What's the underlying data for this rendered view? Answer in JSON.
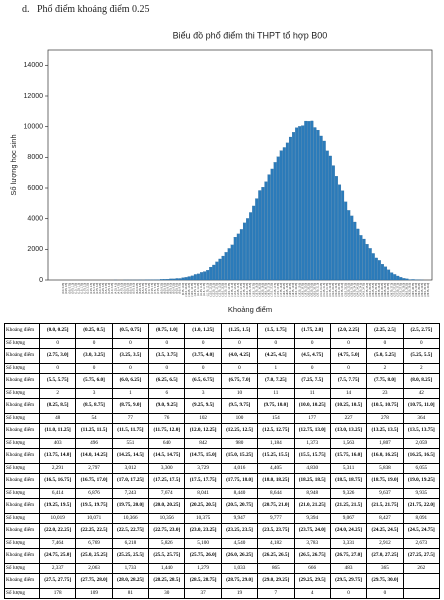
{
  "heading": "d.   Phổ điểm khoảng điểm 0.25",
  "chart_data": {
    "type": "bar",
    "title": "Biểu đồ phổ điểm thi THPT tổ hợp B00",
    "x_label": "Khoảng điểm",
    "y_label": "Số lượng học sinh",
    "color": "#2b7bba",
    "categories": [
      "(0.0, 0.25]",
      "(0.25, 0.5]",
      "(0.5, 0.75]",
      "(0.75, 1.0]",
      "(1.0, 1.25]",
      "(1.25, 1.5]",
      "(1.5, 1.75]",
      "(1.75, 2.0]",
      "(2.0, 2.25]",
      "(2.25, 2.5]",
      "(2.5, 2.75]",
      "(2.75, 3.0]",
      "(3.0, 3.25]",
      "(3.25, 3.5]",
      "(3.5, 3.75]",
      "(3.75, 4.0]",
      "(4.0, 4.25]",
      "(4.25, 4.5]",
      "(4.5, 4.75]",
      "(4.75, 5.0]",
      "(5.0, 5.25]",
      "(5.25, 5.5]",
      "(5.5, 5.75]",
      "(5.75, 6.0]",
      "(6.0, 6.25]",
      "(6.25, 6.5]",
      "(6.5, 6.75]",
      "(6.75, 7.0]",
      "(7.0, 7.25]",
      "(7.25, 7.5]",
      "(7.5, 7.75]",
      "(7.75, 8.0]",
      "(8.0, 8.25]",
      "(8.25, 8.5]",
      "(8.5, 8.75]",
      "(8.75, 9.0]",
      "(9.0, 9.25]",
      "(9.25, 9.5]",
      "(9.5, 9.75]",
      "(9.75, 10.0]",
      "(10.0, 10.25]",
      "(10.25, 10.5]",
      "(10.5, 10.75]",
      "(10.75, 11.0]",
      "(11.0, 11.25]",
      "(11.25, 11.5]",
      "(11.5, 11.75]",
      "(11.75, 12.0]",
      "(12.0, 12.25]",
      "(12.25, 12.5]",
      "(12.5, 12.75]",
      "(12.75, 13.0]",
      "(13.0, 13.25]",
      "(13.25, 13.5]",
      "(13.5, 13.75]",
      "(13.75, 14.0]",
      "(14.0, 14.25]",
      "(14.25, 14.5]",
      "(14.5, 14.75]",
      "(14.75, 15.0]",
      "(15.0, 15.25]",
      "(15.25, 15.5]",
      "(15.5, 15.75]",
      "(15.75, 16.0]",
      "(16.0, 16.25]",
      "(16.25, 16.5]",
      "(16.5, 16.75]",
      "(16.75, 17.0]",
      "(17.0, 17.25]",
      "(17.25, 17.5]",
      "(17.5, 17.75]",
      "(17.75, 18.0]",
      "(18.0, 18.25]",
      "(18.25, 18.5]",
      "(18.5, 18.75]",
      "(18.75, 19.0]",
      "(19.0, 19.25]",
      "(19.25, 19.5]",
      "(19.5, 19.75]",
      "(19.75, 20.0]",
      "(20.0, 20.25]",
      "(20.25, 20.5]",
      "(20.5, 20.75]",
      "(20.75, 21.0]",
      "(21.0, 21.25]",
      "(21.25, 21.5]",
      "(21.5, 21.75]",
      "(21.75, 22.0]",
      "(22.0, 22.25]",
      "(22.25, 22.5]",
      "(22.5, 22.75]",
      "(22.75, 23.0]",
      "(23.0, 23.25]",
      "(23.25, 23.5]",
      "(23.5, 23.75]",
      "(23.75, 24.0]",
      "(24.0, 24.25]",
      "(24.25, 24.5]",
      "(24.5, 24.75]",
      "(24.75, 25.0]",
      "(25.0, 25.25]",
      "(25.25, 25.5]",
      "(25.5, 25.75]",
      "(25.75, 26.0]",
      "(26.0, 26.25]",
      "(26.25, 26.5]",
      "(26.5, 26.75]",
      "(26.75, 27.0]",
      "(27.0, 27.25]",
      "(27.25, 27.5]",
      "(27.5, 27.75]",
      "(27.75, 28.0]",
      "(28.0, 28.25]",
      "(28.25, 28.5]",
      "(28.5, 28.75]",
      "(28.75, 29.0]",
      "(29.0, 29.25]",
      "(29.25, 29.5]",
      "(29.5, 29.75]",
      "(29.75, 30.0]"
    ],
    "values": [
      0,
      0,
      0,
      0,
      0,
      0,
      0,
      0,
      0,
      0,
      0,
      0,
      0,
      0,
      0,
      0,
      0,
      1,
      0,
      0,
      2,
      2,
      2,
      3,
      1,
      6,
      3,
      10,
      11,
      11,
      14,
      23,
      42,
      48,
      54,
      77,
      76,
      102,
      100,
      154,
      177,
      227,
      278,
      364,
      403,
      496,
      551,
      640,
      842,
      980,
      1184,
      1373,
      1563,
      1807,
      2059,
      2291,
      2797,
      3012,
      3300,
      3729,
      4016,
      4405,
      4830,
      5311,
      5838,
      6055,
      6414,
      6876,
      7243,
      7674,
      8041,
      8440,
      8644,
      8948,
      9326,
      9637,
      9935,
      10019,
      10071,
      10366,
      10356,
      10375,
      9947,
      9777,
      9394,
      9067,
      8427,
      8091,
      7464,
      6769,
      6218,
      5826,
      5100,
      4540,
      4182,
      3783,
      3331,
      2912,
      2673,
      2337,
      2063,
      1733,
      1440,
      1279,
      1033,
      865,
      666,
      483,
      365,
      262,
      178,
      109,
      81,
      30,
      37,
      19,
      7,
      4,
      0,
      0
    ],
    "value_labels": [
      "0",
      "0",
      "0",
      "0",
      "0",
      "0",
      "0",
      "0",
      "0",
      "0",
      "0",
      "0",
      "0",
      "0",
      "0",
      "0",
      "0",
      "1",
      "0",
      "0",
      "2",
      "2",
      "2",
      "3",
      "1",
      "6",
      "3",
      "10",
      "11",
      "11",
      "14",
      "23",
      "42",
      "48",
      "54",
      "77",
      "76",
      "102",
      "100",
      "154",
      "177",
      "227",
      "278",
      "364",
      "403",
      "496",
      "551",
      "640",
      "842",
      "980",
      "1,184",
      "1,373",
      "1,563",
      "1,807",
      "2,059",
      "2,291",
      "2,797",
      "3,012",
      "3,300",
      "3,729",
      "4,016",
      "4,405",
      "4,830",
      "5,311",
      "5,838",
      "6,055",
      "6,414",
      "6,876",
      "7,243",
      "7,674",
      "8,041",
      "8,440",
      "8,644",
      "8,948",
      "9,326",
      "9,637",
      "9,935",
      "10,019",
      "10,071",
      "10,366",
      "10,356",
      "10,375",
      "9,947",
      "9,777",
      "9,394",
      "9,067",
      "8,427",
      "8,091",
      "7,464",
      "6,769",
      "6,218",
      "5,826",
      "5,100",
      "4,540",
      "4,182",
      "3,783",
      "3,331",
      "2,912",
      "2,673",
      "2,337",
      "2,063",
      "1,733",
      "1,440",
      "1,279",
      "1,033",
      "865",
      "666",
      "483",
      "365",
      "262",
      "178",
      "109",
      "81",
      "30",
      "37",
      "19",
      "7",
      "4",
      "0",
      "0"
    ],
    "ylim": [
      0,
      15000
    ],
    "yticks": [
      0,
      2000,
      4000,
      6000,
      8000,
      10000,
      12000,
      14000
    ]
  },
  "table": {
    "range_label": "Khoảng điểm",
    "count_label": "Số lượng"
  }
}
